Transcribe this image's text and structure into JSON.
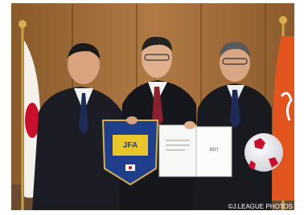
{
  "photo": {
    "credit": "©J.LEAGUE PHOTOS",
    "pennant_text": "JFA",
    "certificate_year": "2017"
  }
}
